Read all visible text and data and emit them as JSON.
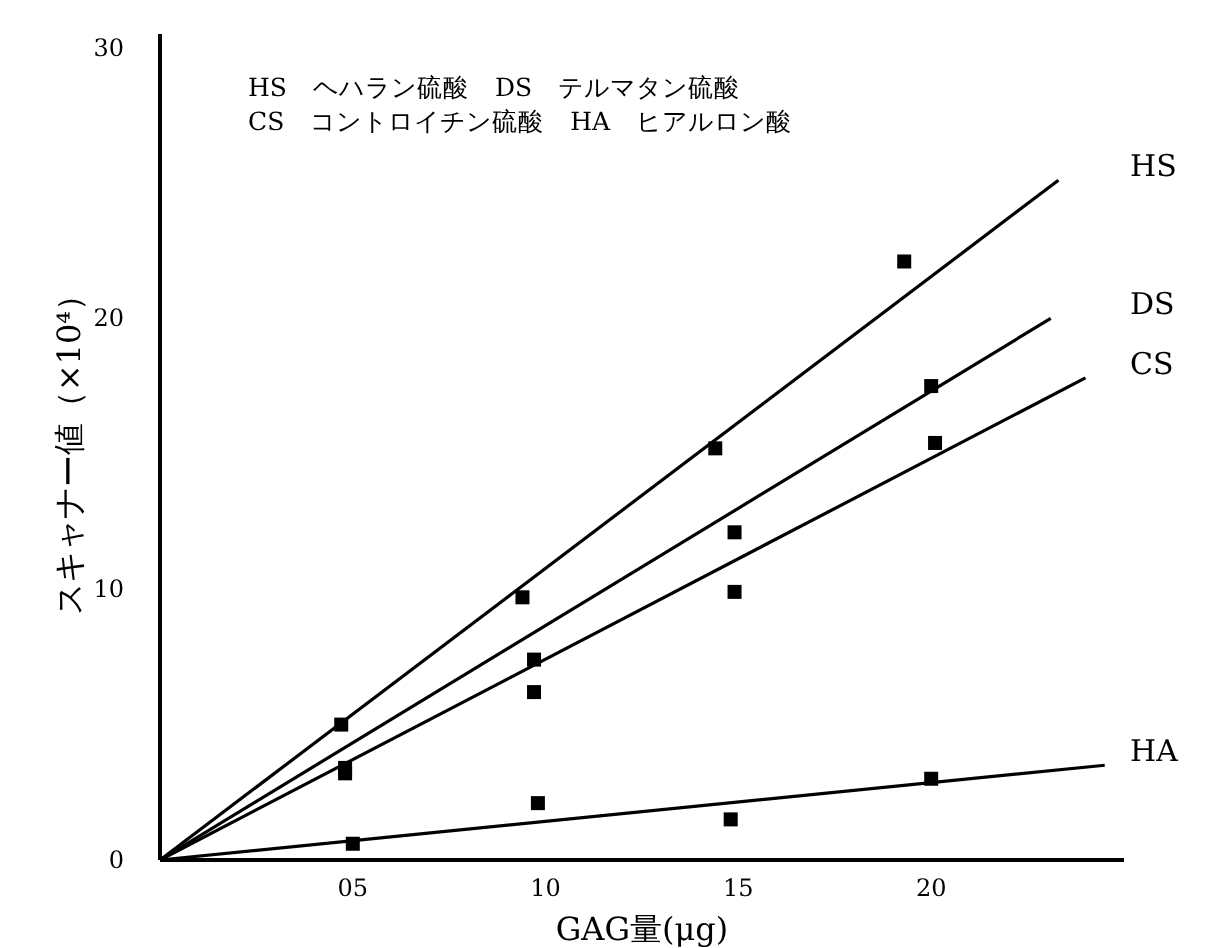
{
  "chart_data": {
    "type": "scatter",
    "xlabel": "GAG量(μg)",
    "ylabel": "スキャナー値（×10⁴）",
    "annotations": [
      "HS　ヘハラン硫酸　DS　テルマタン硫酸",
      "CS　コントロイチン硫酸　HA　ヒアルロン酸"
    ],
    "xlim": [
      0,
      25
    ],
    "xticks": [
      {
        "value": 5,
        "label": "05"
      },
      10,
      15,
      20
    ],
    "ylim": [
      0,
      30.5
    ],
    "yticks": [
      0,
      10,
      20,
      30
    ],
    "grid": false,
    "marker": "square",
    "series": [
      {
        "name": "HS",
        "type": "line",
        "marker": "none",
        "color": "#000000",
        "x": [
          0,
          23.3
        ],
        "values": [
          0,
          25.1
        ]
      },
      {
        "name": "DS",
        "type": "line",
        "marker": "none",
        "color": "#000000",
        "x": [
          0,
          23.1
        ],
        "values": [
          0,
          20.0
        ]
      },
      {
        "name": "CS",
        "type": "line",
        "marker": "none",
        "color": "#000000",
        "x": [
          0,
          24.0
        ],
        "values": [
          0,
          17.8
        ]
      },
      {
        "name": "HA",
        "type": "line",
        "marker": "none",
        "color": "#000000",
        "x": [
          0,
          24.5
        ],
        "values": [
          0,
          3.5
        ]
      },
      {
        "color": "#000000",
        "x": [
          4.7,
          9.4,
          14.4,
          19.3
        ],
        "values": [
          5.0,
          9.7,
          15.2,
          22.1
        ]
      },
      {
        "color": "#000000",
        "x": [
          4.8,
          9.7,
          14.9,
          20.0
        ],
        "values": [
          3.2,
          7.4,
          12.1,
          17.5
        ]
      },
      {
        "color": "#000000",
        "x": [
          4.8,
          9.7,
          14.9,
          20.1
        ],
        "values": [
          3.4,
          6.2,
          9.9,
          15.4
        ]
      },
      {
        "color": "#000000",
        "x": [
          5.0,
          9.8,
          14.8,
          20.0
        ],
        "values": [
          0.6,
          2.1,
          1.5,
          3.0
        ]
      }
    ]
  }
}
